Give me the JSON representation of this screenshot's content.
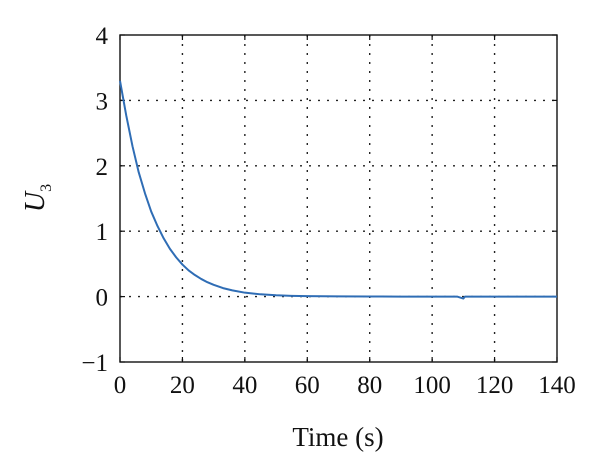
{
  "chart_data": {
    "type": "line",
    "title": "",
    "xlabel": "Time (s)",
    "ylabel": {
      "main": "U",
      "subscript": "3"
    },
    "xlim": [
      0,
      140
    ],
    "ylim": [
      -1,
      4
    ],
    "xticks": [
      0,
      20,
      40,
      60,
      80,
      100,
      120,
      140
    ],
    "yticks": [
      -1,
      0,
      1,
      2,
      3,
      4
    ],
    "xtick_labels": [
      "0",
      "20",
      "40",
      "60",
      "80",
      "100",
      "120",
      "140"
    ],
    "ytick_labels": [
      "−1",
      "0",
      "1",
      "2",
      "3",
      "4"
    ],
    "grid": true,
    "series": [
      {
        "color": "#2f6db5",
        "x": [
          0,
          2,
          4,
          6,
          8,
          10,
          12,
          14,
          16,
          18,
          20,
          22,
          24,
          26,
          28,
          30,
          33,
          36,
          40,
          45,
          50,
          55,
          60,
          70,
          80,
          90,
          100,
          108,
          110,
          110.5,
          112,
          120,
          130,
          140
        ],
        "y": [
          3.3,
          2.77,
          2.3,
          1.9,
          1.58,
          1.3,
          1.08,
          0.89,
          0.73,
          0.6,
          0.49,
          0.4,
          0.33,
          0.27,
          0.22,
          0.18,
          0.13,
          0.095,
          0.06,
          0.035,
          0.02,
          0.012,
          0.007,
          0.003,
          0.001,
          0.0,
          0.0,
          0.0,
          -0.03,
          0.0,
          0.0,
          0.0,
          0.0,
          0.0
        ]
      }
    ]
  }
}
